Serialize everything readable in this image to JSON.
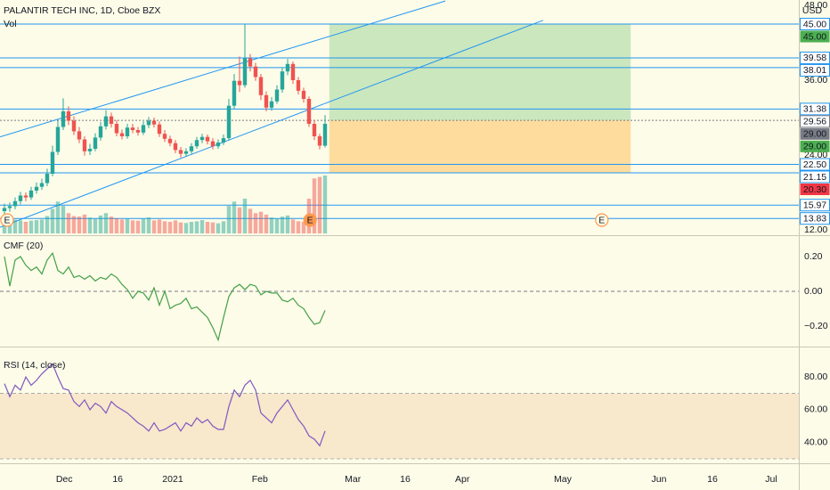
{
  "chart_data": [
    {
      "type": "candlestick",
      "title": "PALANTIR TECH INC, 1D, Cboe BZX",
      "currency": "USD",
      "ylim": [
        12,
        48
      ],
      "yticks": [
        {
          "value": 48,
          "label": "48.00"
        },
        {
          "value": 36,
          "label": "36.00"
        },
        {
          "value": 24,
          "label": "24.00"
        },
        {
          "value": 12,
          "label": "12.00"
        }
      ],
      "xlim": [
        -0.83,
        148.67
      ],
      "xticks": [
        {
          "value": 11.2,
          "label": "Dec"
        },
        {
          "value": 21.2,
          "label": "16"
        },
        {
          "value": 31.5,
          "label": "2021"
        },
        {
          "value": 47.8,
          "label": "Feb"
        },
        {
          "value": 65.2,
          "label": "Mar"
        },
        {
          "value": 75,
          "label": "16"
        },
        {
          "value": 85.7,
          "label": "Apr"
        },
        {
          "value": 104.5,
          "label": "May"
        },
        {
          "value": 122.5,
          "label": "Jun"
        },
        {
          "value": 132.5,
          "label": "16"
        },
        {
          "value": 143.5,
          "label": "Jul"
        }
      ],
      "up_color": "#26a69a",
      "down_color": "#ef5350",
      "open": [
        15.0,
        15.5,
        15.8,
        16.6,
        17.5,
        17.2,
        18.3,
        18.9,
        19.5,
        21.0,
        24.5,
        28.5,
        31.0,
        29.5,
        27.8,
        26.5,
        24.6,
        25.0,
        26.8,
        28.6,
        30.2,
        29.0,
        27.5,
        27.0,
        28.4,
        28.0,
        27.6,
        28.8,
        29.5,
        28.9,
        27.4,
        26.6,
        25.9,
        24.8,
        24.2,
        24.6,
        25.4,
        26.4,
        26.9,
        26.2,
        25.4,
        26.0,
        26.7,
        31.9,
        35.9,
        35.2,
        39.5,
        38.2,
        36.5,
        33.6,
        31.6,
        32.6,
        34.5,
        37.4,
        38.6,
        36.0,
        34.3,
        33.0,
        29.0,
        27.0,
        25.5
      ],
      "high": [
        16.2,
        16.4,
        17.2,
        18.1,
        18.0,
        18.9,
        19.6,
        20.2,
        21.8,
        25.5,
        29.6,
        33.1,
        31.8,
        30.2,
        28.5,
        27.0,
        25.8,
        27.5,
        29.3,
        31.2,
        30.8,
        29.6,
        28.1,
        29.0,
        29.0,
        28.5,
        29.4,
        30.1,
        30.0,
        29.4,
        28.0,
        27.1,
        26.4,
        25.3,
        25.1,
        25.9,
        26.9,
        27.4,
        27.3,
        26.7,
        26.5,
        27.3,
        33.0,
        37.0,
        39.8,
        45.0,
        40.2,
        38.8,
        37.0,
        34.2,
        33.3,
        35.2,
        38.0,
        39.4,
        39.0,
        36.5,
        34.8,
        33.4,
        29.6,
        27.4,
        30.4
      ],
      "low": [
        14.3,
        14.9,
        15.3,
        16.1,
        16.6,
        16.8,
        17.8,
        18.4,
        19.0,
        20.6,
        24.0,
        28.0,
        28.8,
        27.2,
        25.9,
        23.9,
        24.0,
        24.6,
        26.3,
        28.1,
        28.4,
        27.0,
        26.5,
        26.6,
        27.5,
        27.1,
        27.2,
        28.3,
        28.4,
        26.9,
        26.1,
        25.4,
        24.3,
        23.6,
        23.7,
        24.2,
        25.0,
        25.9,
        25.7,
        24.9,
        25.0,
        25.6,
        26.3,
        31.4,
        34.1,
        34.8,
        37.4,
        35.9,
        32.8,
        31.0,
        31.1,
        32.2,
        34.0,
        36.8,
        35.4,
        33.7,
        32.4,
        28.5,
        26.4,
        24.9,
        25.2
      ],
      "close": [
        15.5,
        15.8,
        16.6,
        17.5,
        17.2,
        18.3,
        18.9,
        19.5,
        21.0,
        24.5,
        28.5,
        31.0,
        29.5,
        27.8,
        26.5,
        24.6,
        25.0,
        26.8,
        28.6,
        30.2,
        29.0,
        27.5,
        27.0,
        28.4,
        28.0,
        27.6,
        28.8,
        29.5,
        28.9,
        27.4,
        26.6,
        25.9,
        24.8,
        24.2,
        24.6,
        25.4,
        26.4,
        26.9,
        26.2,
        25.4,
        26.0,
        26.7,
        31.9,
        35.9,
        35.2,
        39.5,
        38.2,
        36.5,
        33.6,
        31.6,
        32.6,
        34.5,
        37.4,
        38.6,
        36.0,
        34.3,
        33.0,
        29.0,
        27.0,
        25.5,
        29.0
      ],
      "levels": [
        {
          "value": 45,
          "label": "45.00",
          "color": "#2196f3"
        },
        {
          "value": 39.58,
          "label": "39.58",
          "color": "#2196f3"
        },
        {
          "value": 38.01,
          "label": "38.01",
          "color": "#2196f3"
        },
        {
          "value": 31.38,
          "label": "31.38",
          "color": "#2196f3"
        },
        {
          "value": 29.56,
          "label": "29.56",
          "color": "#787b86",
          "dotted": true
        },
        {
          "value": 22.5,
          "label": "22.50",
          "color": "#2196f3"
        },
        {
          "value": 21.15,
          "label": "21.15",
          "color": "#2196f3"
        },
        {
          "value": 15.97,
          "label": "15.97",
          "color": "#2196f3"
        },
        {
          "value": 13.83,
          "label": "13.83",
          "color": "#2196f3"
        }
      ],
      "badges": [
        {
          "value": 45,
          "label": "45.00",
          "color": "#4caf50"
        },
        {
          "value": 29,
          "label": "29.00",
          "color": "#787b86"
        },
        {
          "value": 29,
          "label": "29.00",
          "color": "#4caf50"
        },
        {
          "value": 20.3,
          "label": "20.30",
          "color": "#f23645"
        }
      ],
      "trendlines": [
        {
          "x": [
            -0.83,
            82.5
          ],
          "y": [
            26.9,
            48.7
          ]
        },
        {
          "x": [
            -0.83,
            100.8
          ],
          "y": [
            12.4,
            45.6
          ]
        }
      ],
      "position": {
        "start": 60.8,
        "end": 117.2,
        "entry": 29.56,
        "target": 45,
        "stop": 21.15
      },
      "earnings": [
        {
          "x": 0.5,
          "label": "E"
        },
        {
          "x": 57.2,
          "label": "E",
          "filled": true
        },
        {
          "x": 111.8,
          "label": "E"
        }
      ]
    },
    {
      "type": "volume",
      "title": "Vol",
      "ylim": [
        0,
        600
      ],
      "values": [
        50,
        42,
        48,
        45,
        40,
        44,
        46,
        48,
        60,
        85,
        110,
        95,
        70,
        60,
        58,
        65,
        55,
        50,
        62,
        70,
        58,
        52,
        48,
        50,
        45,
        44,
        50,
        55,
        45,
        48,
        42,
        40,
        45,
        38,
        36,
        40,
        42,
        46,
        40,
        38,
        35,
        42,
        95,
        110,
        90,
        120,
        85,
        70,
        75,
        65,
        55,
        50,
        58,
        62,
        48,
        42,
        40,
        120,
        190,
        195,
        200
      ]
    },
    {
      "type": "line",
      "title": "CMF (20)",
      "color": "#43a047",
      "ylim": [
        -0.3,
        0.3
      ],
      "yticks": [
        {
          "value": 0.2,
          "label": "0.20"
        },
        {
          "value": 0,
          "label": "0.00"
        },
        {
          "value": -0.2,
          "label": "−0.20"
        }
      ],
      "hlines": [
        0
      ],
      "values": [
        0.2,
        0.03,
        0.18,
        0.2,
        0.15,
        0.12,
        0.14,
        0.1,
        0.18,
        0.22,
        0.12,
        0.1,
        0.14,
        0.08,
        0.09,
        0.07,
        0.09,
        0.06,
        0.08,
        0.07,
        0.1,
        0.08,
        0.04,
        0.01,
        -0.04,
        0,
        -0.01,
        -0.05,
        0.02,
        -0.08,
        0,
        -0.1,
        -0.08,
        -0.07,
        -0.04,
        -0.1,
        -0.09,
        -0.12,
        -0.15,
        -0.21,
        -0.28,
        -0.15,
        -0.03,
        0.02,
        0.04,
        0.01,
        0.04,
        0.03,
        -0.02,
        0,
        -0.01,
        -0.01,
        -0.05,
        -0.06,
        -0.04,
        -0.08,
        -0.1,
        -0.15,
        -0.19,
        -0.18,
        -0.11
      ]
    },
    {
      "type": "line",
      "title": "RSI (14, close)",
      "color": "#7e57c2",
      "ylim": [
        30,
        97
      ],
      "yticks": [
        {
          "value": 80,
          "label": "80.00"
        },
        {
          "value": 60,
          "label": "60.00"
        },
        {
          "value": 40,
          "label": "40.00"
        }
      ],
      "band": [
        30,
        70
      ],
      "values": [
        76,
        68,
        75,
        72,
        80,
        75,
        78,
        82,
        85,
        88,
        80,
        73,
        72,
        65,
        62,
        66,
        60,
        64,
        62,
        58,
        65,
        62,
        60,
        58,
        55,
        52,
        50,
        47,
        52,
        47,
        48,
        50,
        52,
        47,
        52,
        50,
        55,
        52,
        54,
        50,
        48,
        48,
        62,
        72,
        68,
        75,
        78,
        72,
        58,
        55,
        52,
        58,
        62,
        66,
        60,
        54,
        50,
        44,
        42,
        38,
        47
      ]
    }
  ]
}
